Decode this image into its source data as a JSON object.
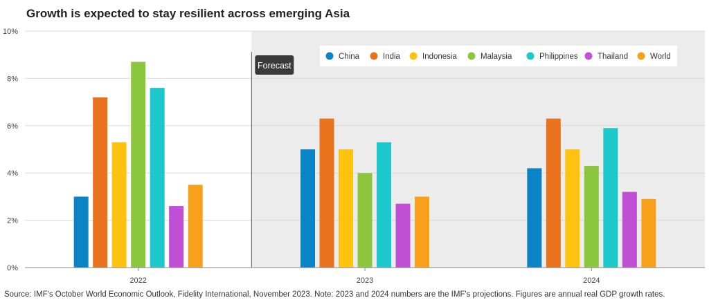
{
  "chart_data": {
    "type": "bar",
    "title": "Growth is expected to stay resilient across emerging Asia",
    "categories": [
      "2022",
      "2023",
      "2024"
    ],
    "series": [
      {
        "name": "China",
        "color": "#0B84C6",
        "values": [
          3.0,
          5.0,
          4.2
        ]
      },
      {
        "name": "India",
        "color": "#E8731C",
        "values": [
          7.2,
          6.3,
          6.3
        ]
      },
      {
        "name": "Indonesia",
        "color": "#FFC20E",
        "values": [
          5.3,
          5.0,
          5.0
        ]
      },
      {
        "name": "Malaysia",
        "color": "#8CC63F",
        "values": [
          8.7,
          4.0,
          4.3
        ]
      },
      {
        "name": "Philippines",
        "color": "#1CC8CC",
        "values": [
          7.6,
          5.3,
          5.9
        ]
      },
      {
        "name": "Thailand",
        "color": "#C14FD6",
        "values": [
          2.6,
          2.7,
          3.2
        ]
      },
      {
        "name": "World",
        "color": "#F9A01B",
        "values": [
          3.5,
          3.0,
          2.9
        ]
      }
    ],
    "yticks": [
      "0%",
      "2%",
      "4%",
      "6%",
      "8%",
      "10%"
    ],
    "ylim": [
      0,
      10
    ],
    "legend_position": "top-right",
    "forecast_label": "Forecast",
    "forecast_shaded_from_category": "2023"
  },
  "source_note": "Source: IMF's October World Economic Outlook, Fidelity International, November 2023. Note: 2023 and 2024 numbers are the IMF's projections. Figures are annual real GDP growth rates."
}
